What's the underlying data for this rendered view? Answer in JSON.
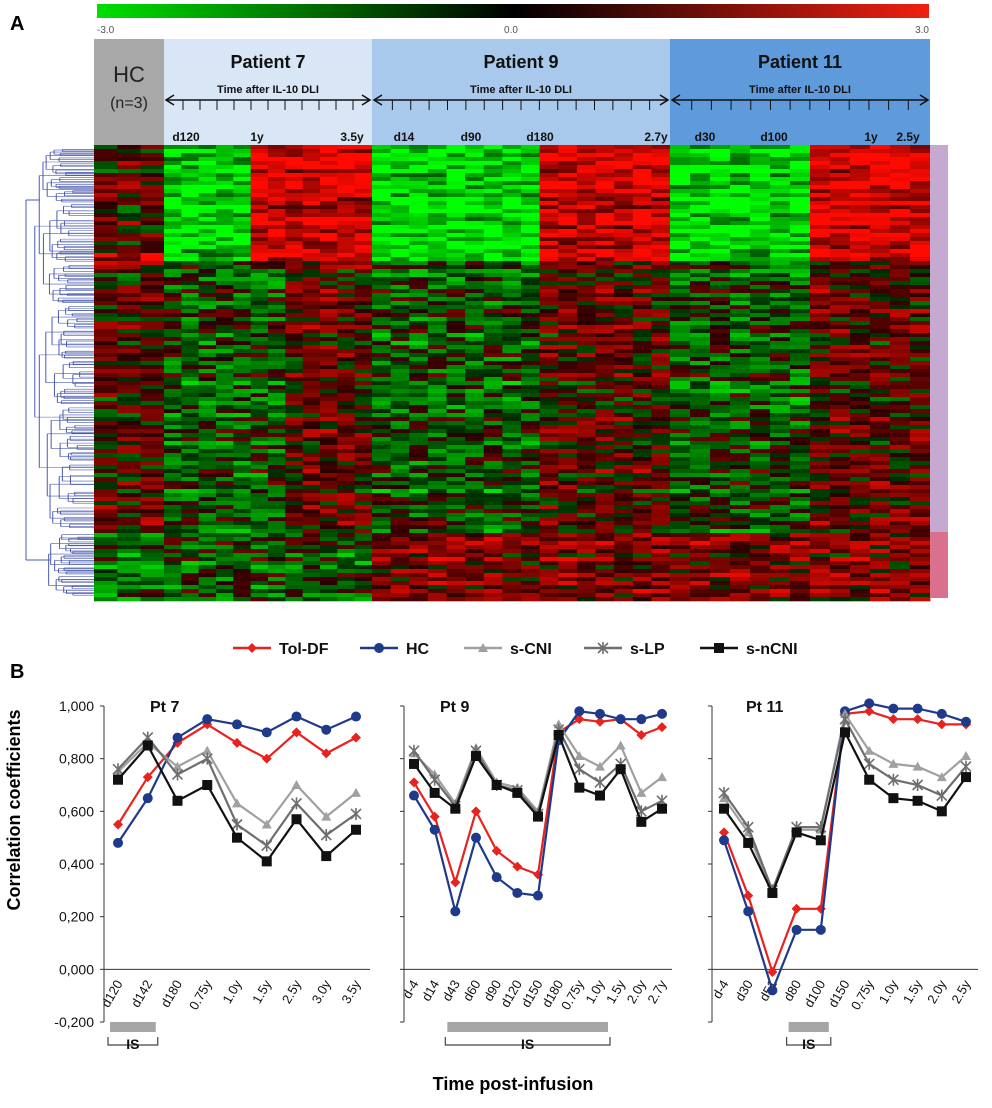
{
  "panelA": {
    "label": "A",
    "colorbar": {
      "min": "-3.0",
      "mid": "0.0",
      "max": "3.0"
    },
    "hc": {
      "title": "HC",
      "subtitle": "(n=3)"
    },
    "patients": [
      {
        "title": "Patient 7",
        "axis_label": "Time after IL-10 DLI",
        "ticks": [
          "d120",
          "1y",
          "3.5y"
        ]
      },
      {
        "title": "Patient 9",
        "axis_label": "Time after IL-10 DLI",
        "ticks": [
          "d14",
          "d90",
          "d180",
          "2.7y"
        ]
      },
      {
        "title": "Patient 11",
        "axis_label": "Time after IL-10 DLI",
        "ticks": [
          "d30",
          "d100",
          "1y",
          "2.5y"
        ]
      }
    ]
  },
  "panelB": {
    "label": "B",
    "ylabel": "Correlation coefficients",
    "xlabel": "Time post-infusion",
    "is_label": "IS",
    "legend": [
      {
        "name": "Tol-DF",
        "color": "#e8231f",
        "marker": "diamond"
      },
      {
        "name": "HC",
        "color": "#1f3a8a",
        "marker": "circle"
      },
      {
        "name": "s-CNI",
        "color": "#a0a0a0",
        "marker": "triangle"
      },
      {
        "name": "s-LP",
        "color": "#6e6e6e",
        "marker": "star"
      },
      {
        "name": "s-nCNI",
        "color": "#111111",
        "marker": "square"
      }
    ],
    "yticks": [
      "1,000",
      "0,800",
      "0,600",
      "0,400",
      "0,200",
      "0,000",
      "-0,200"
    ]
  },
  "chart_data": [
    {
      "type": "line",
      "title": "Pt 7",
      "ylim": [
        -0.2,
        1.0
      ],
      "categories": [
        "d120",
        "d142",
        "d180",
        "0.75y",
        "1.0y",
        "1.5y",
        "2.5y",
        "3.0y",
        "3.5y"
      ],
      "is_span": [
        "d120",
        "d142"
      ],
      "series": [
        {
          "name": "Tol-DF",
          "values": [
            0.55,
            0.73,
            0.86,
            0.93,
            0.86,
            0.8,
            0.9,
            0.82,
            0.88
          ]
        },
        {
          "name": "HC",
          "values": [
            0.48,
            0.65,
            0.88,
            0.95,
            0.93,
            0.9,
            0.96,
            0.91,
            0.96
          ]
        },
        {
          "name": "s-CNI",
          "values": [
            0.75,
            0.86,
            0.77,
            0.83,
            0.63,
            0.55,
            0.7,
            0.58,
            0.67
          ]
        },
        {
          "name": "s-LP",
          "values": [
            0.76,
            0.88,
            0.74,
            0.8,
            0.55,
            0.47,
            0.63,
            0.51,
            0.59
          ]
        },
        {
          "name": "s-nCNI",
          "values": [
            0.72,
            0.85,
            0.64,
            0.7,
            0.5,
            0.41,
            0.57,
            0.43,
            0.53
          ]
        }
      ]
    },
    {
      "type": "line",
      "title": "Pt 9",
      "ylim": [
        -0.2,
        1.0
      ],
      "categories": [
        "d-4",
        "d14",
        "d43",
        "d60",
        "d90",
        "d120",
        "d150",
        "d180",
        "0.75y",
        "1.0y",
        "1.5y",
        "2.0y",
        "2.7y"
      ],
      "is_span": [
        "d43",
        "1.0y"
      ],
      "series": [
        {
          "name": "Tol-DF",
          "values": [
            0.71,
            0.58,
            0.33,
            0.6,
            0.45,
            0.39,
            0.36,
            0.9,
            0.95,
            0.94,
            0.95,
            0.89,
            0.92
          ]
        },
        {
          "name": "HC",
          "values": [
            0.66,
            0.53,
            0.22,
            0.5,
            0.35,
            0.29,
            0.28,
            0.87,
            0.98,
            0.97,
            0.95,
            0.95,
            0.97
          ]
        },
        {
          "name": "s-CNI",
          "values": [
            0.82,
            0.74,
            0.63,
            0.84,
            0.71,
            0.69,
            0.6,
            0.93,
            0.81,
            0.77,
            0.85,
            0.67,
            0.73
          ]
        },
        {
          "name": "s-LP",
          "values": [
            0.83,
            0.72,
            0.62,
            0.83,
            0.7,
            0.68,
            0.59,
            0.91,
            0.76,
            0.71,
            0.78,
            0.6,
            0.64
          ]
        },
        {
          "name": "s-nCNI",
          "values": [
            0.78,
            0.67,
            0.61,
            0.81,
            0.7,
            0.67,
            0.58,
            0.89,
            0.69,
            0.66,
            0.76,
            0.56,
            0.61
          ]
        }
      ]
    },
    {
      "type": "line",
      "title": "Pt 11",
      "ylim": [
        -0.2,
        1.0
      ],
      "categories": [
        "d-4",
        "d30",
        "d51",
        "d80",
        "d100",
        "d150",
        "0.75y",
        "1.0y",
        "1.5y",
        "2.0y",
        "2.5y"
      ],
      "is_span": [
        "d80",
        "d100"
      ],
      "series": [
        {
          "name": "Tol-DF",
          "values": [
            0.52,
            0.28,
            -0.01,
            0.23,
            0.23,
            0.97,
            0.98,
            0.95,
            0.95,
            0.93,
            0.93
          ]
        },
        {
          "name": "HC",
          "values": [
            0.49,
            0.22,
            -0.08,
            0.15,
            0.15,
            0.98,
            1.01,
            0.99,
            0.99,
            0.97,
            0.94
          ]
        },
        {
          "name": "s-CNI",
          "values": [
            0.65,
            0.52,
            0.29,
            0.53,
            0.53,
            0.97,
            0.83,
            0.78,
            0.77,
            0.73,
            0.81
          ]
        },
        {
          "name": "s-LP",
          "values": [
            0.67,
            0.54,
            0.3,
            0.54,
            0.54,
            0.95,
            0.78,
            0.72,
            0.7,
            0.66,
            0.77
          ]
        },
        {
          "name": "s-nCNI",
          "values": [
            0.61,
            0.48,
            0.29,
            0.52,
            0.49,
            0.9,
            0.72,
            0.65,
            0.64,
            0.6,
            0.73
          ]
        }
      ]
    }
  ]
}
